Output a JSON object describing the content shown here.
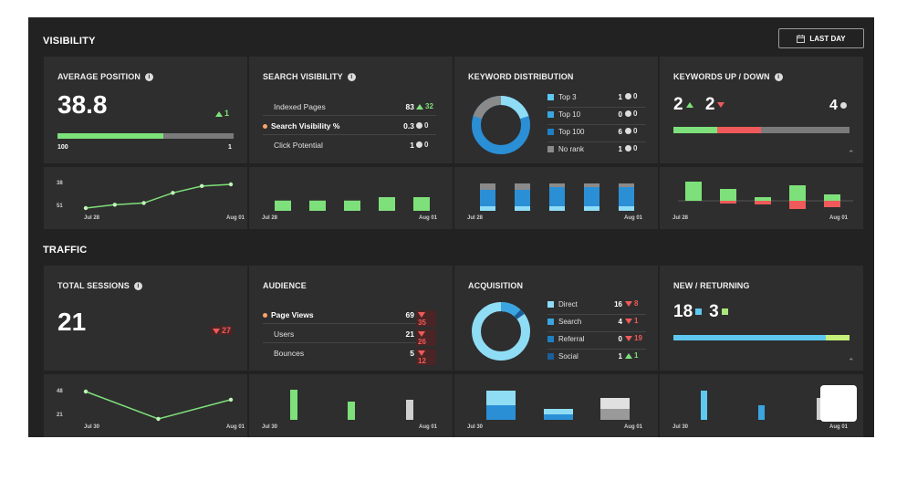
{
  "visibility": {
    "section_title": "VISIBILITY",
    "date_button": "LAST DAY",
    "average_position": {
      "title": "AVERAGE POSITION",
      "value": "38.8",
      "change": "1",
      "range_min": "100",
      "range_max": "1",
      "progress": 0.6,
      "chart": {
        "y_top": "38",
        "y_bottom": "51",
        "x_start": "Jul 28",
        "x_end": "Aug 01",
        "points": [
          51,
          49,
          48,
          42,
          38,
          37
        ]
      }
    },
    "search_visibility": {
      "title": "SEARCH VISIBILITY",
      "rows": [
        {
          "label": "Indexed Pages",
          "value": "83",
          "change": "32",
          "dir": "up"
        },
        {
          "label": "Search Visibility %",
          "value": "0.3",
          "change": "0",
          "dir": "neutral",
          "highlight": true
        },
        {
          "label": "Click Potential",
          "value": "1",
          "change": "0",
          "dir": "neutral"
        }
      ],
      "chart": {
        "x_start": "Jul 28",
        "x_end": "Aug 01",
        "bars": [
          3,
          3,
          3,
          4,
          4
        ]
      }
    },
    "keyword_distribution": {
      "title": "KEYWORD DISTRIBUTION",
      "legend": [
        {
          "label": "Top 3",
          "value": "1",
          "change": "0",
          "color": "#5ec8f0"
        },
        {
          "label": "Top 10",
          "value": "0",
          "change": "0",
          "color": "#3aa5e0"
        },
        {
          "label": "Top 100",
          "value": "6",
          "change": "0",
          "color": "#1f7fc4"
        },
        {
          "label": "No rank",
          "value": "1",
          "change": "0",
          "color": "#8a8a8a"
        }
      ],
      "chart": {
        "x_start": "Jul 28",
        "x_end": "Aug 01"
      }
    },
    "keywords_up_down": {
      "title": "KEYWORDS UP / DOWN",
      "up": "2",
      "down": "2",
      "neutral": "4",
      "chart": {
        "x_start": "Jul 28",
        "x_end": "Aug 01"
      }
    }
  },
  "traffic": {
    "section_title": "TRAFFIC",
    "total_sessions": {
      "title": "TOTAL SESSIONS",
      "value": "21",
      "change": "27",
      "chart": {
        "y_top": "48",
        "y_bottom": "21",
        "x_start": "Jul 30",
        "x_end": "Aug 01",
        "points": [
          48,
          21,
          40
        ]
      }
    },
    "audience": {
      "title": "AUDIENCE",
      "rows": [
        {
          "label": "Page Views",
          "value": "69",
          "change": "35",
          "dir": "down",
          "highlight": true
        },
        {
          "label": "Users",
          "value": "21",
          "change": "26",
          "dir": "down"
        },
        {
          "label": "Bounces",
          "value": "5",
          "change": "12",
          "dir": "down"
        }
      ],
      "chart": {
        "x_start": "Jul 30",
        "x_end": "Aug 01"
      }
    },
    "acquisition": {
      "title": "ACQUISITION",
      "legend": [
        {
          "label": "Direct",
          "value": "16",
          "change": "8",
          "dir": "down",
          "color": "#8fdcf5"
        },
        {
          "label": "Search",
          "value": "4",
          "change": "1",
          "dir": "down",
          "color": "#3aa5e0"
        },
        {
          "label": "Referral",
          "value": "0",
          "change": "19",
          "dir": "down",
          "color": "#1f7fc4"
        },
        {
          "label": "Social",
          "value": "1",
          "change": "1",
          "dir": "up",
          "color": "#1a5e9a"
        }
      ],
      "chart": {
        "x_start": "Jul 30",
        "x_end": "Aug 01"
      }
    },
    "new_returning": {
      "title": "NEW / RETURNING",
      "new": "18",
      "returning": "3",
      "chart": {
        "x_start": "Jul 30",
        "x_end": "Aug 01"
      }
    }
  },
  "colors": {
    "green": "#7ee07a",
    "red": "#f05a5a",
    "blue": "#3aa5e0",
    "light_blue": "#5ec8f0",
    "gray": "#8a8a8a"
  }
}
